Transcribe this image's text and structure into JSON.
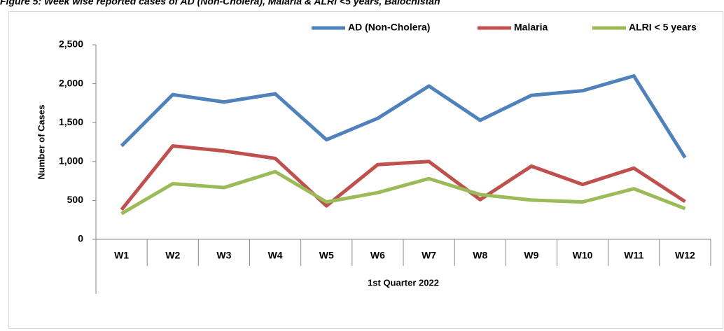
{
  "chart_data": {
    "type": "line",
    "title": "Figure 5: Week wise reported cases of AD (Non-Cholera), Malaria & ALRI <5 years, Balochistan",
    "x_label": "1st Quarter 2022",
    "y_label": "Number of Cases",
    "categories": [
      "W1",
      "W2",
      "W3",
      "W4",
      "W5",
      "W6",
      "W7",
      "W8",
      "W9",
      "W10",
      "W11",
      "W12"
    ],
    "series": [
      {
        "name": "AD (Non-Cholera)",
        "color": "#4f81bd",
        "values": [
          1200,
          1860,
          1765,
          1870,
          1280,
          1555,
          1970,
          1530,
          1850,
          1910,
          2100,
          1050
        ]
      },
      {
        "name": "Malaria",
        "color": "#c0504d",
        "values": [
          380,
          1200,
          1135,
          1040,
          430,
          960,
          1000,
          510,
          940,
          705,
          915,
          485
        ]
      },
      {
        "name": "ALRI < 5 years",
        "color": "#9bbb59",
        "values": [
          330,
          715,
          665,
          870,
          480,
          600,
          780,
          575,
          505,
          480,
          650,
          395
        ]
      }
    ],
    "ylim": [
      0,
      2500
    ],
    "yticks": [
      0,
      500,
      {
        "value": 1000,
        "label": "1,000"
      },
      {
        "value": 1500,
        "label": "1,500"
      },
      {
        "value": 2000,
        "label": "2,000"
      },
      {
        "value": 2500,
        "label": "2,500"
      }
    ],
    "legend": "top-right",
    "grid": false
  }
}
